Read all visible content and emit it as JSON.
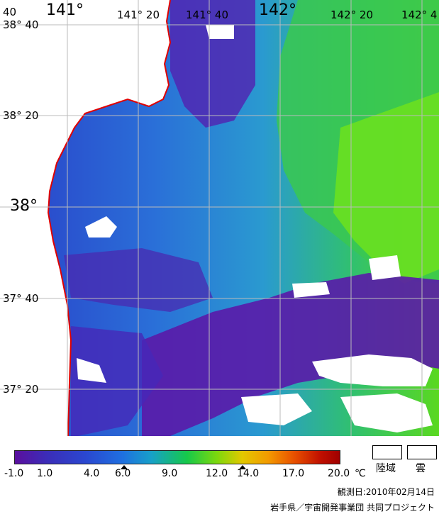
{
  "map": {
    "top_labels": [
      {
        "text": "40",
        "size": "small"
      },
      {
        "text": "141°",
        "size": "big"
      },
      {
        "text": "141° 20",
        "size": "small"
      },
      {
        "text": "141° 40",
        "size": "small"
      },
      {
        "text": "142°",
        "size": "big"
      },
      {
        "text": "142° 20",
        "size": "small"
      },
      {
        "text": "142° 4",
        "size": "small"
      }
    ],
    "left_labels": [
      {
        "text": "38° 40",
        "size": "small"
      },
      {
        "text": "38° 20",
        "size": "small"
      },
      {
        "text": "38°",
        "size": "big"
      },
      {
        "text": "37° 40",
        "size": "small"
      },
      {
        "text": "37° 20",
        "size": "small"
      }
    ],
    "colors": {
      "coast": "#e00000",
      "land": "#ffffff",
      "cloud": "#ffffff",
      "grid": "#bbbbbb"
    }
  },
  "colorbar": {
    "ticks": [
      "-1.0",
      "1.0",
      "4.0",
      "6.0",
      "9.0",
      "12.0",
      "14.0",
      "17.0",
      "20.0"
    ],
    "unit": "℃"
  },
  "legend": {
    "land": "陸域",
    "cloud": "雲"
  },
  "footer": {
    "date": "観測日:2010年02月14日",
    "credit": "岩手県／宇宙開発事業団 共同プロジェクト"
  }
}
